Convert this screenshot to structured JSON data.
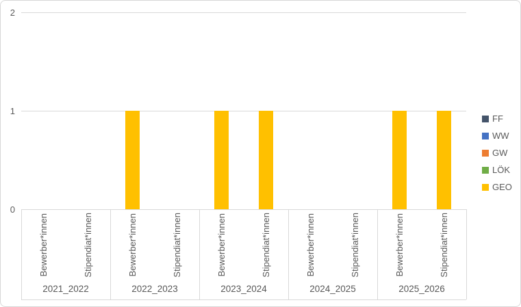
{
  "chart": {
    "background": "#FFFFFF",
    "border_color": "#D7D7D7",
    "grid_color": "#D9D9D9",
    "text_color": "#595959"
  },
  "chart_data": {
    "type": "bar",
    "title": "",
    "xlabel": "",
    "ylabel": "",
    "groups": [
      "2021_2022",
      "2022_2023",
      "2023_2024",
      "2024_2025",
      "2025_2026"
    ],
    "subcategories": [
      "Bewerber*innen",
      "Stipendiat*innen"
    ],
    "series": [
      {
        "name": "FF",
        "color": "#44546A",
        "values": [
          [
            0,
            0
          ],
          [
            0,
            0
          ],
          [
            0,
            0
          ],
          [
            0,
            0
          ],
          [
            0,
            0
          ]
        ]
      },
      {
        "name": "WW",
        "color": "#4472C4",
        "values": [
          [
            0,
            0
          ],
          [
            0,
            0
          ],
          [
            0,
            0
          ],
          [
            0,
            0
          ],
          [
            0,
            0
          ]
        ]
      },
      {
        "name": "GW",
        "color": "#ED7D31",
        "values": [
          [
            0,
            0
          ],
          [
            0,
            0
          ],
          [
            0,
            0
          ],
          [
            0,
            0
          ],
          [
            0,
            0
          ]
        ]
      },
      {
        "name": "LÖK",
        "color": "#70AD47",
        "values": [
          [
            0,
            0
          ],
          [
            0,
            0
          ],
          [
            0,
            0
          ],
          [
            0,
            0
          ],
          [
            0,
            0
          ]
        ]
      },
      {
        "name": "GEO",
        "color": "#FFC000",
        "values": [
          [
            0,
            0
          ],
          [
            1,
            0
          ],
          [
            1,
            1
          ],
          [
            0,
            0
          ],
          [
            1,
            1
          ]
        ]
      }
    ],
    "ylim": [
      0,
      2
    ],
    "yticks": [
      0,
      1,
      2
    ],
    "grid": true,
    "legend_position": "right"
  }
}
